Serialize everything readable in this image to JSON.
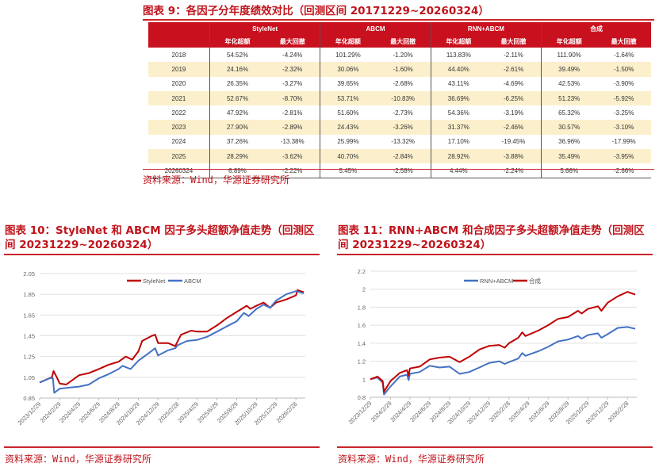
{
  "table_fig": {
    "title": "图表 9：各因子分年度绩效对比（回测区间 20171229~20260324）",
    "groups": [
      "StyleNet",
      "ABCM",
      "RNN+ABCM",
      "合成"
    ],
    "subheaders": [
      "年化超额",
      "最大回撤"
    ],
    "rows": [
      [
        "2018",
        "54.52%",
        "-4.24%",
        "101.29%",
        "-1.20%",
        "113.83%",
        "-2.11%",
        "111.90%",
        "-1.64%"
      ],
      [
        "2019",
        "24.16%",
        "-2.32%",
        "30.06%",
        "-1.60%",
        "44.40%",
        "-2.61%",
        "39.49%",
        "-1.50%"
      ],
      [
        "2020",
        "26.35%",
        "-3.27%",
        "39.65%",
        "-2.68%",
        "43.11%",
        "-4.69%",
        "42.53%",
        "-3.90%"
      ],
      [
        "2021",
        "52.67%",
        "-8.70%",
        "53.71%",
        "-10.83%",
        "36.69%",
        "-6.25%",
        "51.23%",
        "-5.92%"
      ],
      [
        "2022",
        "47.92%",
        "-2.81%",
        "51.60%",
        "-2.73%",
        "54.36%",
        "-3.19%",
        "65.32%",
        "-3.25%"
      ],
      [
        "2023",
        "27.90%",
        "-2.89%",
        "24.43%",
        "-3.26%",
        "31.37%",
        "-2.46%",
        "30.57%",
        "-3.10%"
      ],
      [
        "2024",
        "37.26%",
        "-13.38%",
        "25.99%",
        "-13.32%",
        "17.10%",
        "-19.45%",
        "36.96%",
        "-17.99%"
      ],
      [
        "2025",
        "28.29%",
        "-3.62%",
        "40.70%",
        "-2.84%",
        "28.92%",
        "-3.88%",
        "35.49%",
        "-3.95%"
      ],
      [
        "20260324",
        "6.89%",
        "-2.22%",
        "5.45%",
        "-2.58%",
        "4.44%",
        "-2.24%",
        "5.66%",
        "-2.66%"
      ]
    ],
    "source": "资料来源：Wind，华源证券研究所"
  },
  "colors": {
    "accent": "#c0141c",
    "header_bg": "#c8101e",
    "alt_row": "#fcf0cc",
    "red_series": "#c00000",
    "blue_series": "#4472c4"
  },
  "chart_data": [
    {
      "type": "line",
      "title": "图表 10：StyleNet 和 ABCM 因子多头超额净值走势（回测区间 20231229~20260324）",
      "source": "资料来源：Wind，华源证券研究所",
      "ylim": [
        0.85,
        2.05
      ],
      "yticks": [
        "0.85",
        "1.05",
        "1.25",
        "1.45",
        "1.65",
        "1.85",
        "2.05"
      ],
      "xticks": [
        "2023/12/29",
        "2024/2/29",
        "2024/4/29",
        "2024/6/29",
        "2024/8/29",
        "2024/10/29",
        "2024/12/29",
        "2025/2/28",
        "2025/4/29",
        "2025/6/29",
        "2025/8/29",
        "2025/10/29",
        "2025/12/29",
        "2026/2/28"
      ],
      "grid": true,
      "legend": "top-center",
      "series": [
        {
          "name": "StyleNet",
          "color": "#c00000",
          "points": [
            [
              "2023-12-29",
              1.0
            ],
            [
              "2024-01-20",
              1.03
            ],
            [
              "2024-02-05",
              1.05
            ],
            [
              "2024-02-10",
              1.11
            ],
            [
              "2024-02-20",
              1.05
            ],
            [
              "2024-02-29",
              0.99
            ],
            [
              "2024-03-20",
              0.98
            ],
            [
              "2024-04-29",
              1.07
            ],
            [
              "2024-05-29",
              1.09
            ],
            [
              "2024-06-29",
              1.13
            ],
            [
              "2024-07-29",
              1.17
            ],
            [
              "2024-08-29",
              1.2
            ],
            [
              "2024-09-20",
              1.25
            ],
            [
              "2024-10-10",
              1.22
            ],
            [
              "2024-10-29",
              1.3
            ],
            [
              "2024-11-10",
              1.4
            ],
            [
              "2024-12-10",
              1.45
            ],
            [
              "2024-12-20",
              1.46
            ],
            [
              "2024-12-29",
              1.38
            ],
            [
              "2025-01-29",
              1.38
            ],
            [
              "2025-02-20",
              1.35
            ],
            [
              "2025-02-28",
              1.4
            ],
            [
              "2025-03-10",
              1.46
            ],
            [
              "2025-04-10",
              1.5
            ],
            [
              "2025-04-29",
              1.49
            ],
            [
              "2025-05-29",
              1.49
            ],
            [
              "2025-06-29",
              1.55
            ],
            [
              "2025-07-29",
              1.62
            ],
            [
              "2025-08-29",
              1.68
            ],
            [
              "2025-09-29",
              1.74
            ],
            [
              "2025-10-10",
              1.71
            ],
            [
              "2025-10-29",
              1.74
            ],
            [
              "2025-11-20",
              1.77
            ],
            [
              "2025-12-10",
              1.72
            ],
            [
              "2025-12-29",
              1.77
            ],
            [
              "2026-01-29",
              1.8
            ],
            [
              "2026-02-28",
              1.84
            ],
            [
              "2026-03-05",
              1.89
            ],
            [
              "2026-03-24",
              1.87
            ]
          ]
        },
        {
          "name": "ABCM",
          "color": "#4472c4",
          "points": [
            [
              "2023-12-29",
              1.0
            ],
            [
              "2024-01-29",
              1.04
            ],
            [
              "2024-02-08",
              1.04
            ],
            [
              "2024-02-12",
              0.9
            ],
            [
              "2024-02-29",
              0.94
            ],
            [
              "2024-03-29",
              0.95
            ],
            [
              "2024-04-29",
              0.96
            ],
            [
              "2024-05-29",
              0.98
            ],
            [
              "2024-06-29",
              1.04
            ],
            [
              "2024-07-29",
              1.08
            ],
            [
              "2024-08-29",
              1.13
            ],
            [
              "2024-09-10",
              1.16
            ],
            [
              "2024-10-05",
              1.13
            ],
            [
              "2024-10-29",
              1.21
            ],
            [
              "2024-11-29",
              1.28
            ],
            [
              "2024-12-20",
              1.33
            ],
            [
              "2024-12-29",
              1.26
            ],
            [
              "2025-01-29",
              1.31
            ],
            [
              "2025-02-20",
              1.33
            ],
            [
              "2025-02-28",
              1.36
            ],
            [
              "2025-03-29",
              1.4
            ],
            [
              "2025-04-29",
              1.41
            ],
            [
              "2025-05-29",
              1.44
            ],
            [
              "2025-06-29",
              1.49
            ],
            [
              "2025-07-29",
              1.54
            ],
            [
              "2025-08-29",
              1.59
            ],
            [
              "2025-09-20",
              1.67
            ],
            [
              "2025-10-05",
              1.64
            ],
            [
              "2025-10-29",
              1.71
            ],
            [
              "2025-11-20",
              1.75
            ],
            [
              "2025-12-10",
              1.72
            ],
            [
              "2025-12-29",
              1.79
            ],
            [
              "2026-01-29",
              1.85
            ],
            [
              "2026-02-28",
              1.88
            ],
            [
              "2026-03-24",
              1.86
            ]
          ]
        }
      ]
    },
    {
      "type": "line",
      "title": "图表 11：RNN+ABCM 和合成因子多头超额净值走势（回测区间 20231229~20260324）",
      "source": "资料来源：Wind，华源证券研究所",
      "ylim": [
        0.8,
        2.2
      ],
      "yticks": [
        "0.8",
        "1",
        "1.2",
        "1.4",
        "1.6",
        "1.8",
        "2",
        "2.2"
      ],
      "xticks": [
        "2023/12/29",
        "2024/2/29",
        "2024/4/29",
        "2024/6/29",
        "2024/8/29",
        "2024/10/29",
        "2024/12/29",
        "2025/2/28",
        "2025/4/29",
        "2025/6/29",
        "2025/8/29",
        "2025/10/29",
        "2025/12/29",
        "2026/2/28"
      ],
      "grid": true,
      "legend": "top-center",
      "series": [
        {
          "name": "RNN+ABCM",
          "color": "#4472c4",
          "points": [
            [
              "2023-12-29",
              1.0
            ],
            [
              "2024-01-20",
              1.02
            ],
            [
              "2024-02-05",
              0.96
            ],
            [
              "2024-02-09",
              0.83
            ],
            [
              "2024-02-29",
              0.92
            ],
            [
              "2024-03-29",
              1.03
            ],
            [
              "2024-04-20",
              1.05
            ],
            [
              "2024-04-25",
              0.99
            ],
            [
              "2024-04-29",
              1.06
            ],
            [
              "2024-05-29",
              1.08
            ],
            [
              "2024-06-29",
              1.15
            ],
            [
              "2024-07-29",
              1.13
            ],
            [
              "2024-08-29",
              1.14
            ],
            [
              "2024-09-29",
              1.06
            ],
            [
              "2024-10-29",
              1.08
            ],
            [
              "2024-11-29",
              1.13
            ],
            [
              "2024-12-29",
              1.18
            ],
            [
              "2025-01-29",
              1.2
            ],
            [
              "2025-02-15",
              1.17
            ],
            [
              "2025-02-28",
              1.19
            ],
            [
              "2025-03-29",
              1.23
            ],
            [
              "2025-04-10",
              1.29
            ],
            [
              "2025-04-20",
              1.26
            ],
            [
              "2025-05-29",
              1.31
            ],
            [
              "2025-06-29",
              1.36
            ],
            [
              "2025-07-29",
              1.42
            ],
            [
              "2025-08-29",
              1.44
            ],
            [
              "2025-09-29",
              1.48
            ],
            [
              "2025-10-10",
              1.45
            ],
            [
              "2025-10-29",
              1.49
            ],
            [
              "2025-11-29",
              1.51
            ],
            [
              "2025-12-10",
              1.46
            ],
            [
              "2025-12-29",
              1.5
            ],
            [
              "2026-01-29",
              1.57
            ],
            [
              "2026-02-28",
              1.58
            ],
            [
              "2026-03-24",
              1.56
            ]
          ]
        },
        {
          "name": "合成",
          "color": "#c00000",
          "points": [
            [
              "2023-12-29",
              1.0
            ],
            [
              "2024-01-20",
              1.03
            ],
            [
              "2024-02-05",
              0.98
            ],
            [
              "2024-02-09",
              0.86
            ],
            [
              "2024-02-29",
              0.98
            ],
            [
              "2024-03-29",
              1.07
            ],
            [
              "2024-04-20",
              1.1
            ],
            [
              "2024-04-25",
              1.04
            ],
            [
              "2024-04-29",
              1.12
            ],
            [
              "2024-05-29",
              1.14
            ],
            [
              "2024-06-29",
              1.22
            ],
            [
              "2024-07-29",
              1.24
            ],
            [
              "2024-08-29",
              1.25
            ],
            [
              "2024-09-29",
              1.19
            ],
            [
              "2024-10-29",
              1.25
            ],
            [
              "2024-11-29",
              1.33
            ],
            [
              "2024-12-29",
              1.37
            ],
            [
              "2025-01-29",
              1.38
            ],
            [
              "2025-02-15",
              1.35
            ],
            [
              "2025-02-28",
              1.4
            ],
            [
              "2025-03-29",
              1.46
            ],
            [
              "2025-04-10",
              1.52
            ],
            [
              "2025-04-20",
              1.48
            ],
            [
              "2025-05-29",
              1.54
            ],
            [
              "2025-06-29",
              1.6
            ],
            [
              "2025-07-29",
              1.67
            ],
            [
              "2025-08-29",
              1.69
            ],
            [
              "2025-09-29",
              1.76
            ],
            [
              "2025-10-10",
              1.73
            ],
            [
              "2025-10-29",
              1.78
            ],
            [
              "2025-11-29",
              1.81
            ],
            [
              "2025-12-10",
              1.76
            ],
            [
              "2025-12-29",
              1.85
            ],
            [
              "2026-01-29",
              1.92
            ],
            [
              "2026-02-28",
              1.97
            ],
            [
              "2026-03-24",
              1.94
            ]
          ]
        }
      ]
    }
  ]
}
